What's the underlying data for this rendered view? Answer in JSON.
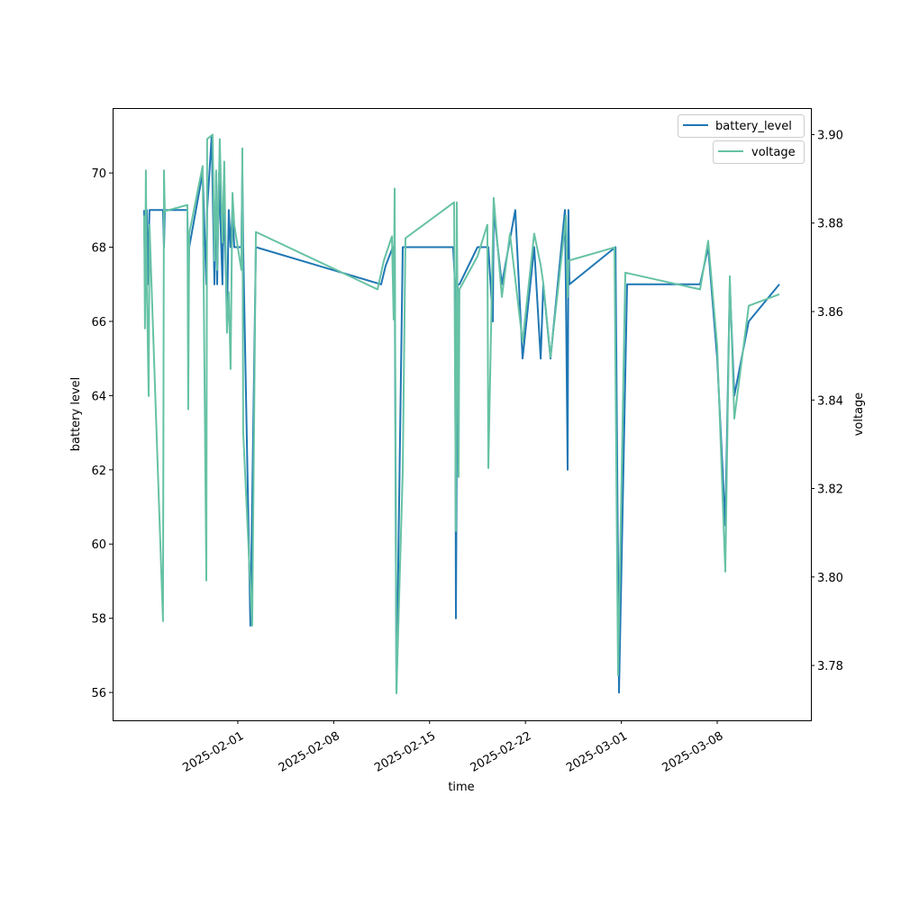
{
  "chart_data": {
    "type": "line",
    "title": "",
    "xlabel": "time",
    "ylabel": "battery level",
    "y2label": "voltage",
    "x_units": "days since 2025-02-01",
    "xlim": [
      -9.14,
      41.84
    ],
    "ylim": [
      55.25,
      71.75
    ],
    "y2lim": [
      3.7676,
      3.906
    ],
    "x_ticks": [
      {
        "value": 0,
        "label": "2025-02-01"
      },
      {
        "value": 7,
        "label": "2025-02-08"
      },
      {
        "value": 14,
        "label": "2025-02-15"
      },
      {
        "value": 21,
        "label": "2025-02-22"
      },
      {
        "value": 28,
        "label": "2025-03-01"
      },
      {
        "value": 35,
        "label": "2025-03-08"
      }
    ],
    "y_ticks": [
      56,
      58,
      60,
      62,
      64,
      66,
      68,
      70
    ],
    "y_tick_labels": [
      "56",
      "58",
      "60",
      "62",
      "64",
      "66",
      "68",
      "70"
    ],
    "y2_ticks": [
      3.78,
      3.8,
      3.82,
      3.84,
      3.86,
      3.88,
      3.9
    ],
    "y2_tick_labels": [
      "3.78",
      "3.80",
      "3.82",
      "3.84",
      "3.86",
      "3.88",
      "3.90"
    ],
    "grid": false,
    "legend_placement": "top-right",
    "series": [
      {
        "name": "battery_level",
        "axis": "left",
        "color": "#1f77b4",
        "x": [
          -6.84,
          -6.78,
          -6.64,
          -6.58,
          -6.45,
          -5.46,
          -5.39,
          -5.33,
          -3.68,
          -3.62,
          -3.55,
          -2.57,
          -2.3,
          -2.24,
          -1.91,
          -1.71,
          -1.58,
          -1.51,
          -1.38,
          -1.12,
          -1.05,
          -0.92,
          -0.79,
          -0.66,
          -0.53,
          -0.39,
          -0.26,
          0.26,
          0.33,
          0.39,
          0.92,
          1.32,
          10.46,
          10.79,
          11.32,
          11.38,
          11.45,
          11.58,
          12.04,
          15.72,
          15.86,
          15.92,
          16.05,
          16.18,
          17.5,
          18.29,
          18.62,
          18.68,
          19.28,
          20.26,
          20.79,
          21.64,
          22.11,
          22.3,
          22.83,
          23.88,
          23.95,
          24.08,
          24.14,
          24.21,
          27.57,
          27.83,
          28.42,
          33.75,
          34.34,
          35.0,
          35.59,
          35.92,
          36.25,
          37.3,
          39.54
        ],
        "y": [
          69,
          67,
          69,
          67,
          69,
          69,
          68,
          69,
          69,
          67,
          68,
          70,
          67,
          69,
          71,
          67,
          70,
          67,
          70,
          67,
          69,
          68,
          66,
          69,
          68,
          69,
          68,
          68,
          70,
          68,
          57.8,
          68,
          67,
          67.5,
          68,
          67,
          68,
          56,
          68,
          68,
          67,
          58,
          67,
          67,
          68,
          68,
          66,
          69,
          67,
          69,
          65,
          68,
          65,
          67,
          65,
          69,
          67,
          62,
          69,
          67,
          68,
          56,
          67,
          67,
          68,
          65,
          60.5,
          67,
          64,
          66,
          67
        ]
      },
      {
        "name": "voltage",
        "axis": "right",
        "color": "#66c2a5",
        "x": [
          -6.84,
          -6.78,
          -6.71,
          -6.64,
          -6.51,
          -6.45,
          -5.46,
          -5.39,
          -5.33,
          -3.68,
          -3.62,
          -3.55,
          -2.57,
          -2.3,
          -2.24,
          -1.84,
          -1.71,
          -1.58,
          -1.51,
          -1.32,
          -1.12,
          -0.99,
          -0.79,
          -0.66,
          -0.53,
          -0.39,
          -0.26,
          0.26,
          0.33,
          0.39,
          1.05,
          1.32,
          10.2,
          10.66,
          11.25,
          11.38,
          11.45,
          11.58,
          12.04,
          12.24,
          15.79,
          15.92,
          15.99,
          16.12,
          16.18,
          17.5,
          18.22,
          18.29,
          18.68,
          19.28,
          19.87,
          20.79,
          21.64,
          22.11,
          22.3,
          22.83,
          23.82,
          23.95,
          24.08,
          24.14,
          27.5,
          27.76,
          28.29,
          33.75,
          34.34,
          35.0,
          35.59,
          35.92,
          36.25,
          37.3,
          39.54
        ],
        "y": [
          3.8817,
          3.8562,
          3.8919,
          3.8654,
          3.8409,
          3.8796,
          3.79,
          3.8919,
          3.8827,
          3.8841,
          3.8379,
          3.8776,
          3.8929,
          3.7992,
          3.899,
          3.9,
          3.8715,
          3.8919,
          3.8694,
          3.899,
          3.8756,
          3.8939,
          3.8552,
          3.8644,
          3.847,
          3.8868,
          3.8796,
          3.8694,
          3.8969,
          3.8328,
          3.789,
          3.878,
          3.865,
          3.8715,
          3.877,
          3.8582,
          3.8878,
          3.7737,
          3.824,
          3.8766,
          3.8847,
          3.8104,
          3.8847,
          3.8226,
          3.865,
          3.8725,
          3.8796,
          3.8246,
          3.8857,
          3.8633,
          3.8776,
          3.8531,
          3.8776,
          3.8705,
          3.8664,
          3.8497,
          3.8776,
          3.8817,
          3.8633,
          3.8715,
          3.8745,
          3.7778,
          3.8688,
          3.865,
          3.876,
          3.8521,
          3.8012,
          3.868,
          3.8358,
          3.8613,
          3.8639
        ]
      }
    ]
  }
}
